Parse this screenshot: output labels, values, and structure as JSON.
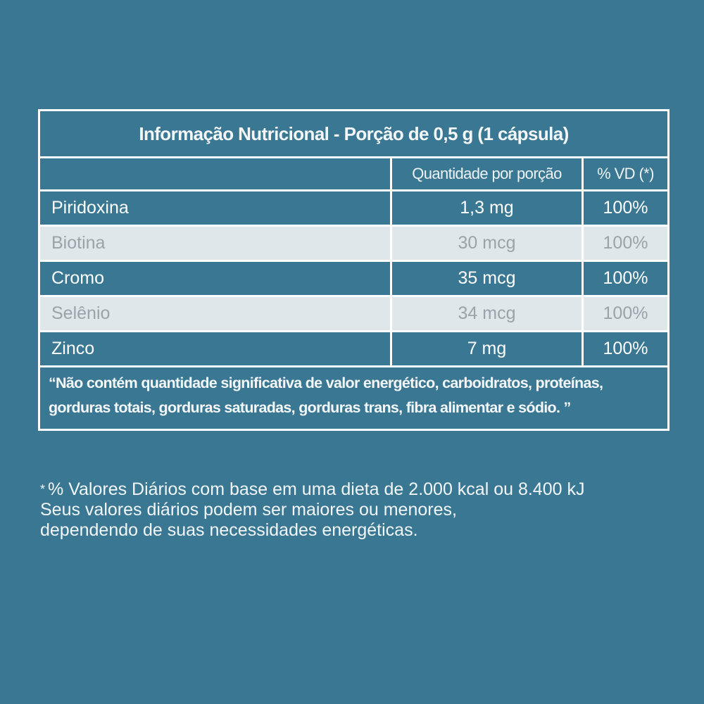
{
  "table": {
    "title": "Informação Nutricional - Porção de 0,5 g (1 cápsula)",
    "headers": {
      "name": "",
      "quantity": "Quantidade por porção",
      "vd": "% VD (*)"
    },
    "rows": [
      {
        "name": "Piridoxina",
        "quantity": "1,3 mg",
        "vd": "100%"
      },
      {
        "name": "Biotina",
        "quantity": "30 mcg",
        "vd": "100%"
      },
      {
        "name": "Cromo",
        "quantity": "35 mcg",
        "vd": "100%"
      },
      {
        "name": "Selênio",
        "quantity": "34 mcg",
        "vd": "100%"
      },
      {
        "name": "Zinco",
        "quantity": "7 mg",
        "vd": "100%"
      }
    ],
    "note": "“Não contém quantidade significativa de valor energético, carboidratos, proteínas, gorduras totais, gorduras saturadas, gorduras trans, fibra alimentar e sódio. ”"
  },
  "footnote": {
    "marker": "*",
    "lines": [
      "% Valores Diários com base em uma dieta de 2.000 kcal ou 8.400 kJ",
      "Seus valores diários podem ser maiores ou menores,",
      "dependendo de suas necessidades energéticas."
    ]
  },
  "colors": {
    "background": "#397793",
    "light_row": "#dfe7eb",
    "light_row_text": "#9aa3a8",
    "border": "#ffffff"
  }
}
